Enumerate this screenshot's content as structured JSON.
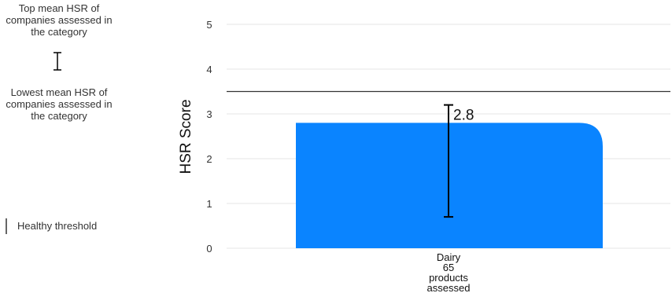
{
  "legend": {
    "top_label": "Top mean HSR of companies assessed in the category",
    "low_label": "Lowest mean HSR of companies assessed in the category",
    "threshold_label": "Healthy threshold"
  },
  "chart_data": {
    "type": "bar",
    "categories": [
      "Dairy"
    ],
    "category_labels": [
      [
        "Dairy",
        "65",
        "products",
        "assessed"
      ]
    ],
    "series": [
      {
        "values": [
          2.8
        ],
        "error_low": [
          0.7
        ],
        "error_high": [
          3.2
        ]
      }
    ],
    "data_labels": [
      "2.8"
    ],
    "threshold": 3.5,
    "ylabel": "HSR Score",
    "ylim": [
      0,
      5
    ],
    "yticks": [
      "0",
      "1",
      "2",
      "3",
      "4",
      "5"
    ],
    "grid": true,
    "colors": {
      "bar": "#0a84ff",
      "error_bar": "#000000",
      "threshold": "#333333",
      "grid": "#e6e6e6"
    }
  }
}
